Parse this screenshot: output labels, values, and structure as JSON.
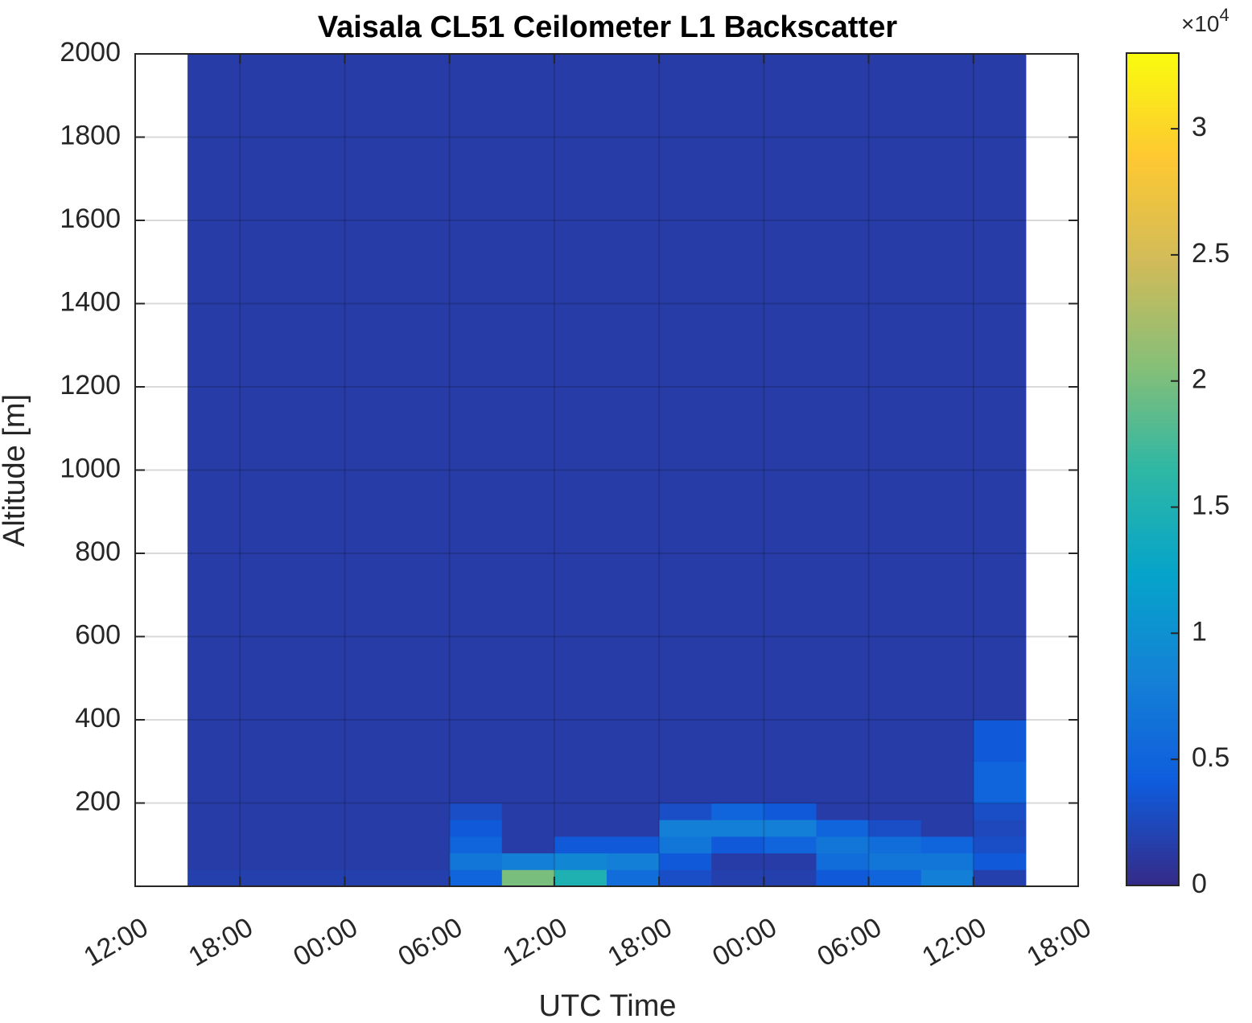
{
  "chart_data": {
    "type": "heatmap",
    "title": "Vaisala CL51 Ceilometer L1 Backscatter",
    "x_label": "UTC Time",
    "y_label": "Altitude [m]",
    "xlim": [
      0,
      54
    ],
    "xticks": [
      {
        "value": 0,
        "label": "12:00"
      },
      {
        "value": 6,
        "label": "18:00"
      },
      {
        "value": 12,
        "label": "00:00"
      },
      {
        "value": 18,
        "label": "06:00"
      },
      {
        "value": 24,
        "label": "12:00"
      },
      {
        "value": 30,
        "label": "18:00"
      },
      {
        "value": 36,
        "label": "00:00"
      },
      {
        "value": 42,
        "label": "06:00"
      },
      {
        "value": 48,
        "label": "12:00"
      },
      {
        "value": 54,
        "label": "18:00"
      }
    ],
    "ylim": [
      0,
      2000
    ],
    "yticks": [
      200,
      400,
      600,
      800,
      1000,
      1200,
      1400,
      1600,
      1800,
      2000
    ],
    "grid": true,
    "colormap": "parula",
    "clim": [
      0,
      33000
    ],
    "cticks": [
      {
        "value": 0,
        "label": "0"
      },
      {
        "value": 5000,
        "label": "0.5"
      },
      {
        "value": 10000,
        "label": "1"
      },
      {
        "value": 15000,
        "label": "1.5"
      },
      {
        "value": 20000,
        "label": "2"
      },
      {
        "value": 25000,
        "label": "2.5"
      },
      {
        "value": 30000,
        "label": "3"
      }
    ],
    "colorbar_scale_base": "×10",
    "colorbar_scale_exponent": "4",
    "x_edges": [
      3,
      6,
      9,
      12,
      15,
      18,
      21,
      24,
      27,
      30,
      33,
      36,
      39,
      42,
      45,
      48,
      51
    ],
    "y_edges": [
      0,
      40,
      80,
      120,
      160,
      200,
      300,
      400,
      2000
    ],
    "z": [
      [
        1800,
        1800,
        1800,
        1800,
        1800,
        5000,
        20000,
        15000,
        6000,
        3000,
        1800,
        1800,
        4000,
        5000,
        8000,
        1800
      ],
      [
        1500,
        1500,
        1500,
        1500,
        1500,
        7000,
        8000,
        9000,
        8000,
        4000,
        1500,
        1500,
        6000,
        7000,
        7000,
        4000
      ],
      [
        1500,
        1500,
        1500,
        1500,
        1500,
        5000,
        1500,
        4000,
        4000,
        7000,
        4000,
        5000,
        7000,
        6000,
        5000,
        3000
      ],
      [
        1500,
        1500,
        1500,
        1500,
        1500,
        4000,
        1500,
        1500,
        1500,
        8000,
        8000,
        8000,
        5000,
        3000,
        1500,
        2500
      ],
      [
        1500,
        1500,
        1500,
        1500,
        1500,
        3000,
        1500,
        1500,
        1500,
        3000,
        5000,
        4000,
        1500,
        1500,
        1500,
        3000
      ],
      [
        1500,
        1500,
        1500,
        1500,
        1500,
        1500,
        1500,
        1500,
        1500,
        1500,
        1500,
        1500,
        1500,
        1500,
        1500,
        5000
      ],
      [
        1500,
        1500,
        1500,
        1500,
        1500,
        1500,
        1500,
        1500,
        1500,
        1500,
        1500,
        1500,
        1500,
        1500,
        1500,
        4000
      ],
      [
        1500,
        1500,
        1500,
        1500,
        1500,
        1500,
        1500,
        1500,
        1500,
        1500,
        1500,
        1500,
        1500,
        1500,
        1500,
        1500
      ]
    ]
  }
}
